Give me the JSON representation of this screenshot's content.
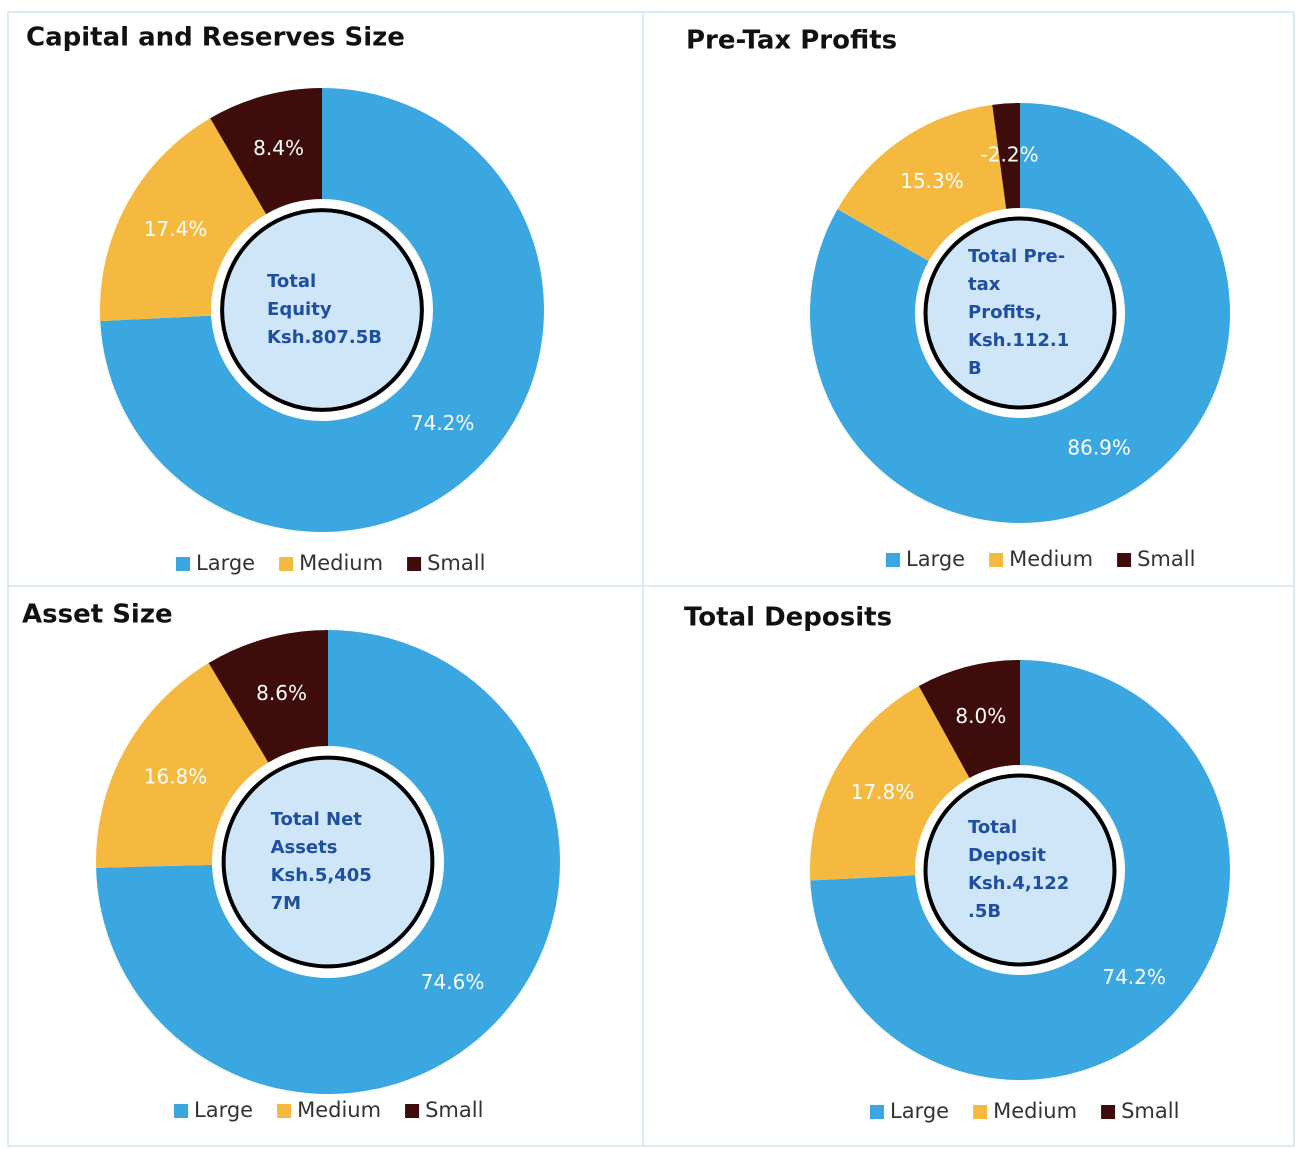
{
  "chart_data": [
    {
      "type": "donut",
      "title": "Capital and Reserves Size",
      "categories": [
        "Large",
        "Medium",
        "Small"
      ],
      "values": [
        74.2,
        17.4,
        8.4
      ],
      "value_labels": [
        "74.2%",
        "17.4%",
        "8.4%"
      ],
      "colors": [
        "#3ba7e1",
        "#f5b940",
        "#3e0d0b"
      ],
      "center_text": [
        "Total",
        "Equity",
        "Ksh.807.5B"
      ],
      "legend": "bottom"
    },
    {
      "type": "donut",
      "title": "Pre-Tax Profits",
      "categories": [
        "Large",
        "Medium",
        "Small"
      ],
      "values": [
        86.9,
        15.3,
        -2.2
      ],
      "value_labels": [
        "86.9%",
        "15.3%",
        "-2.2%"
      ],
      "colors": [
        "#3ba7e1",
        "#f5b940",
        "#3e0d0b"
      ],
      "center_text": [
        "Total Pre-",
        "tax",
        "Profits,",
        "Ksh.112.1",
        "B"
      ],
      "legend": "bottom"
    },
    {
      "type": "donut",
      "title": "Asset Size",
      "categories": [
        "Large",
        "Medium",
        "Small"
      ],
      "values": [
        74.6,
        16.8,
        8.6
      ],
      "value_labels": [
        "74.6%",
        "16.8%",
        "8.6%"
      ],
      "colors": [
        "#3ba7e1",
        "#f5b940",
        "#3e0d0b"
      ],
      "center_text": [
        "Total Net",
        "Assets",
        "Ksh.5,405",
        "7M"
      ],
      "legend": "bottom"
    },
    {
      "type": "donut",
      "title": "Total Deposits",
      "categories": [
        "Large",
        "Medium",
        "Small"
      ],
      "values": [
        74.2,
        17.8,
        8.0
      ],
      "value_labels": [
        "74.2%",
        "17.8%",
        "8.0%"
      ],
      "colors": [
        "#3ba7e1",
        "#f5b940",
        "#3e0d0b"
      ],
      "center_text": [
        "Total",
        "Deposit",
        "Ksh.4,122",
        ".5B"
      ],
      "legend": "bottom"
    }
  ]
}
